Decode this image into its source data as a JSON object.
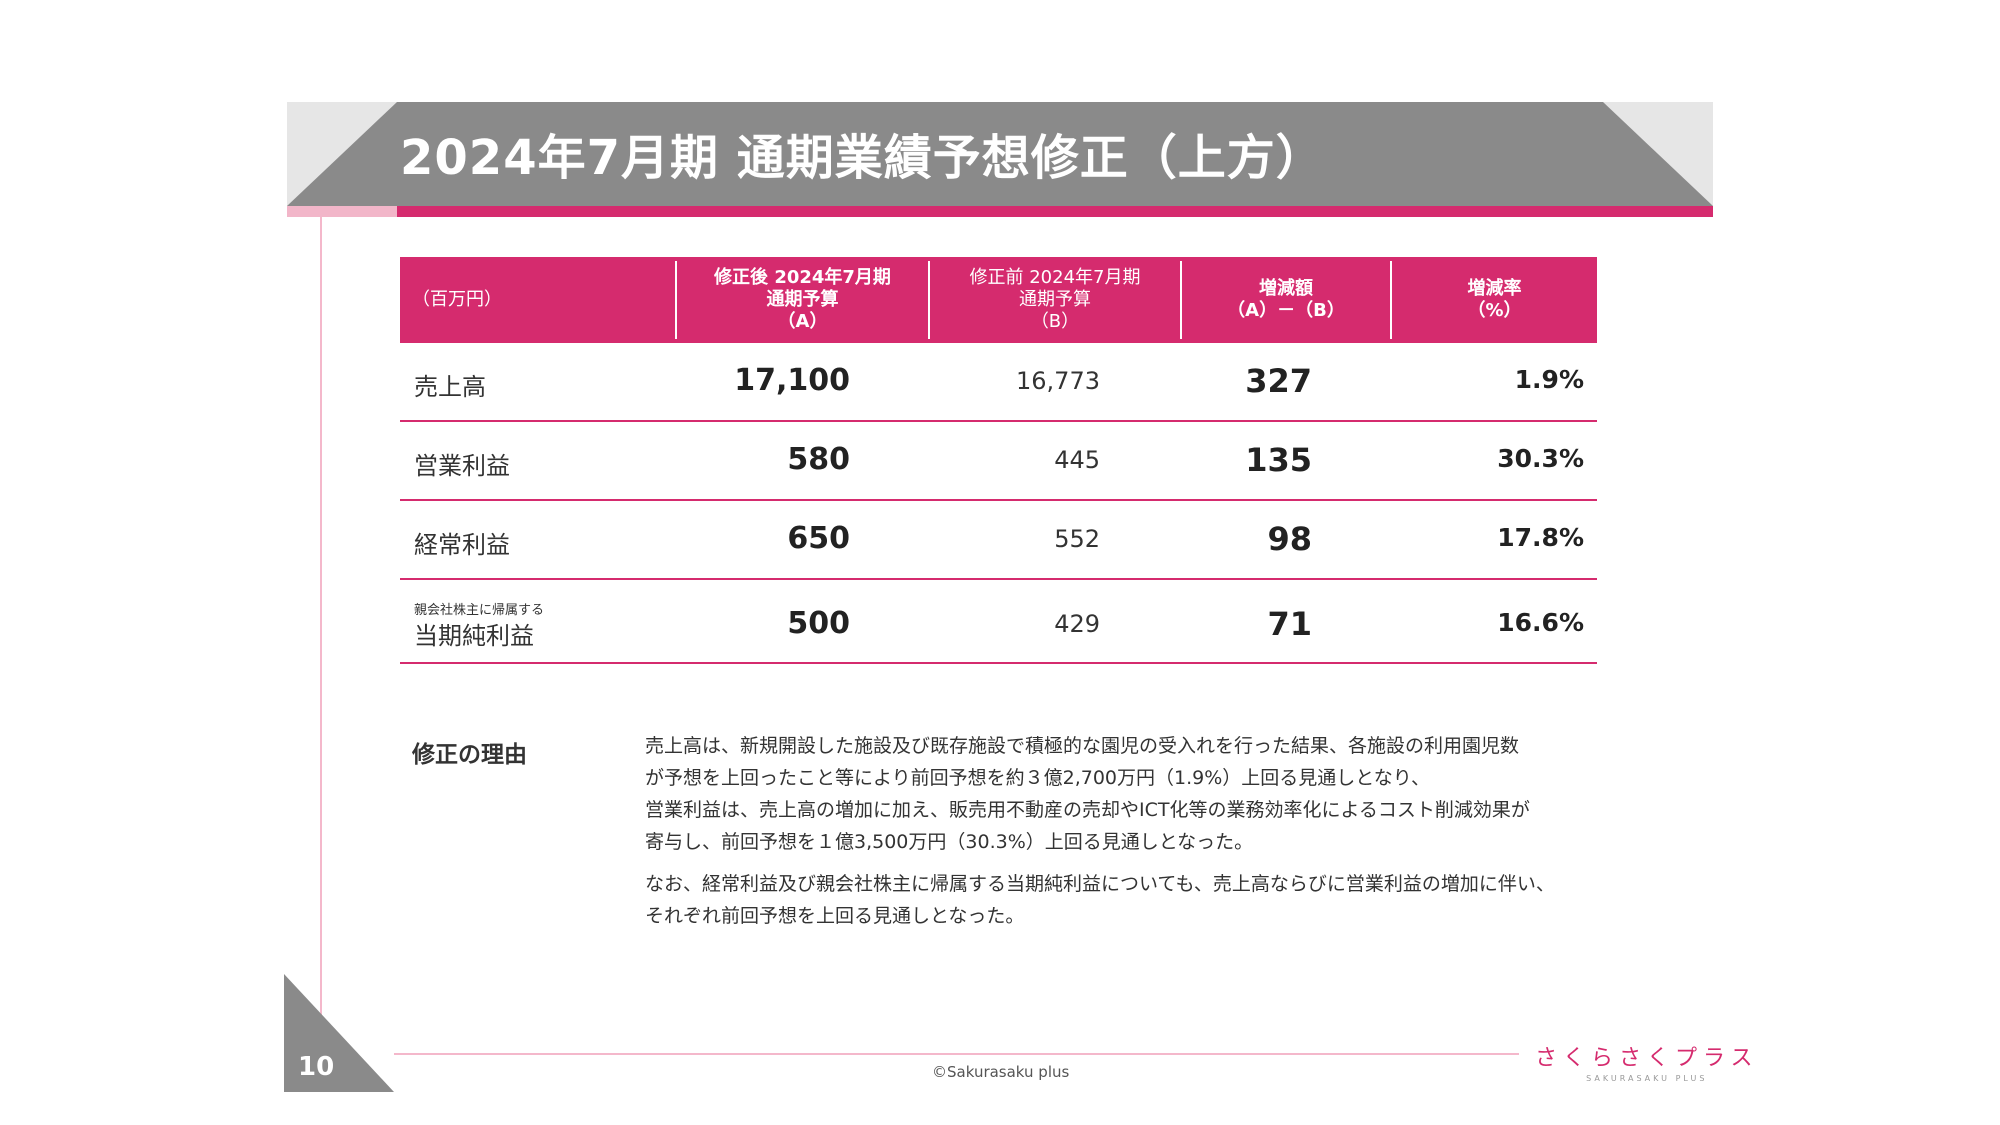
{
  "header": {
    "title": "2024年7月期 通期業績予想修正（上方）"
  },
  "table": {
    "unit_label": "（百万円）",
    "col_a": {
      "l1": "修正後 2024年7月期",
      "l2": "通期予算",
      "l3": "（A）"
    },
    "col_b": {
      "l1": "修正前 2024年7月期",
      "l2": "通期予算",
      "l3": "（B）"
    },
    "col_d": {
      "l1": "増減額",
      "l2": "（A）－（B）"
    },
    "col_r": {
      "l1": "増減率",
      "l2": "（%）"
    },
    "rows": [
      {
        "sublabel": "",
        "label": "売上高",
        "a": "17,100",
        "b": "16,773",
        "diff": "327",
        "rate": "1.9%"
      },
      {
        "sublabel": "",
        "label": "営業利益",
        "a": "580",
        "b": "445",
        "diff": "135",
        "rate": "30.3%"
      },
      {
        "sublabel": "",
        "label": "経常利益",
        "a": "650",
        "b": "552",
        "diff": "98",
        "rate": "17.8%"
      },
      {
        "sublabel": "親会社株主に帰属する",
        "label": "当期純利益",
        "a": "500",
        "b": "429",
        "diff": "71",
        "rate": "16.6%"
      }
    ]
  },
  "reason": {
    "title": "修正の理由",
    "p1_l1": "売上高は、新規開設した施設及び既存施設で積極的な園児の受入れを行った結果、各施設の利用園児数",
    "p1_l2": "が予想を上回ったこと等により前回予想を約３億2,700万円（1.9%）上回る見通しとなり、",
    "p1_l3": "営業利益は、売上高の増加に加え、販売用不動産の売却やICT化等の業務効率化によるコスト削減効果が",
    "p1_l4": "寄与し、前回予想を１億3,500万円（30.3%）上回る見通しとなった。",
    "p2_l1": "なお、経常利益及び親会社株主に帰属する当期純利益についても、売上高ならびに営業利益の増加に伴い、",
    "p2_l2": "それぞれ前回予想を上回る見通しとなった。"
  },
  "footer": {
    "page_number": "10",
    "copyright": "©Sakurasaku plus",
    "logo_main": "さくらさくプラス",
    "logo_sub": "SAKURASAKU PLUS"
  },
  "colors": {
    "accent": "#d52b6e",
    "header_gray": "#8a8a8a",
    "light_pink": "#f4b8cb"
  }
}
